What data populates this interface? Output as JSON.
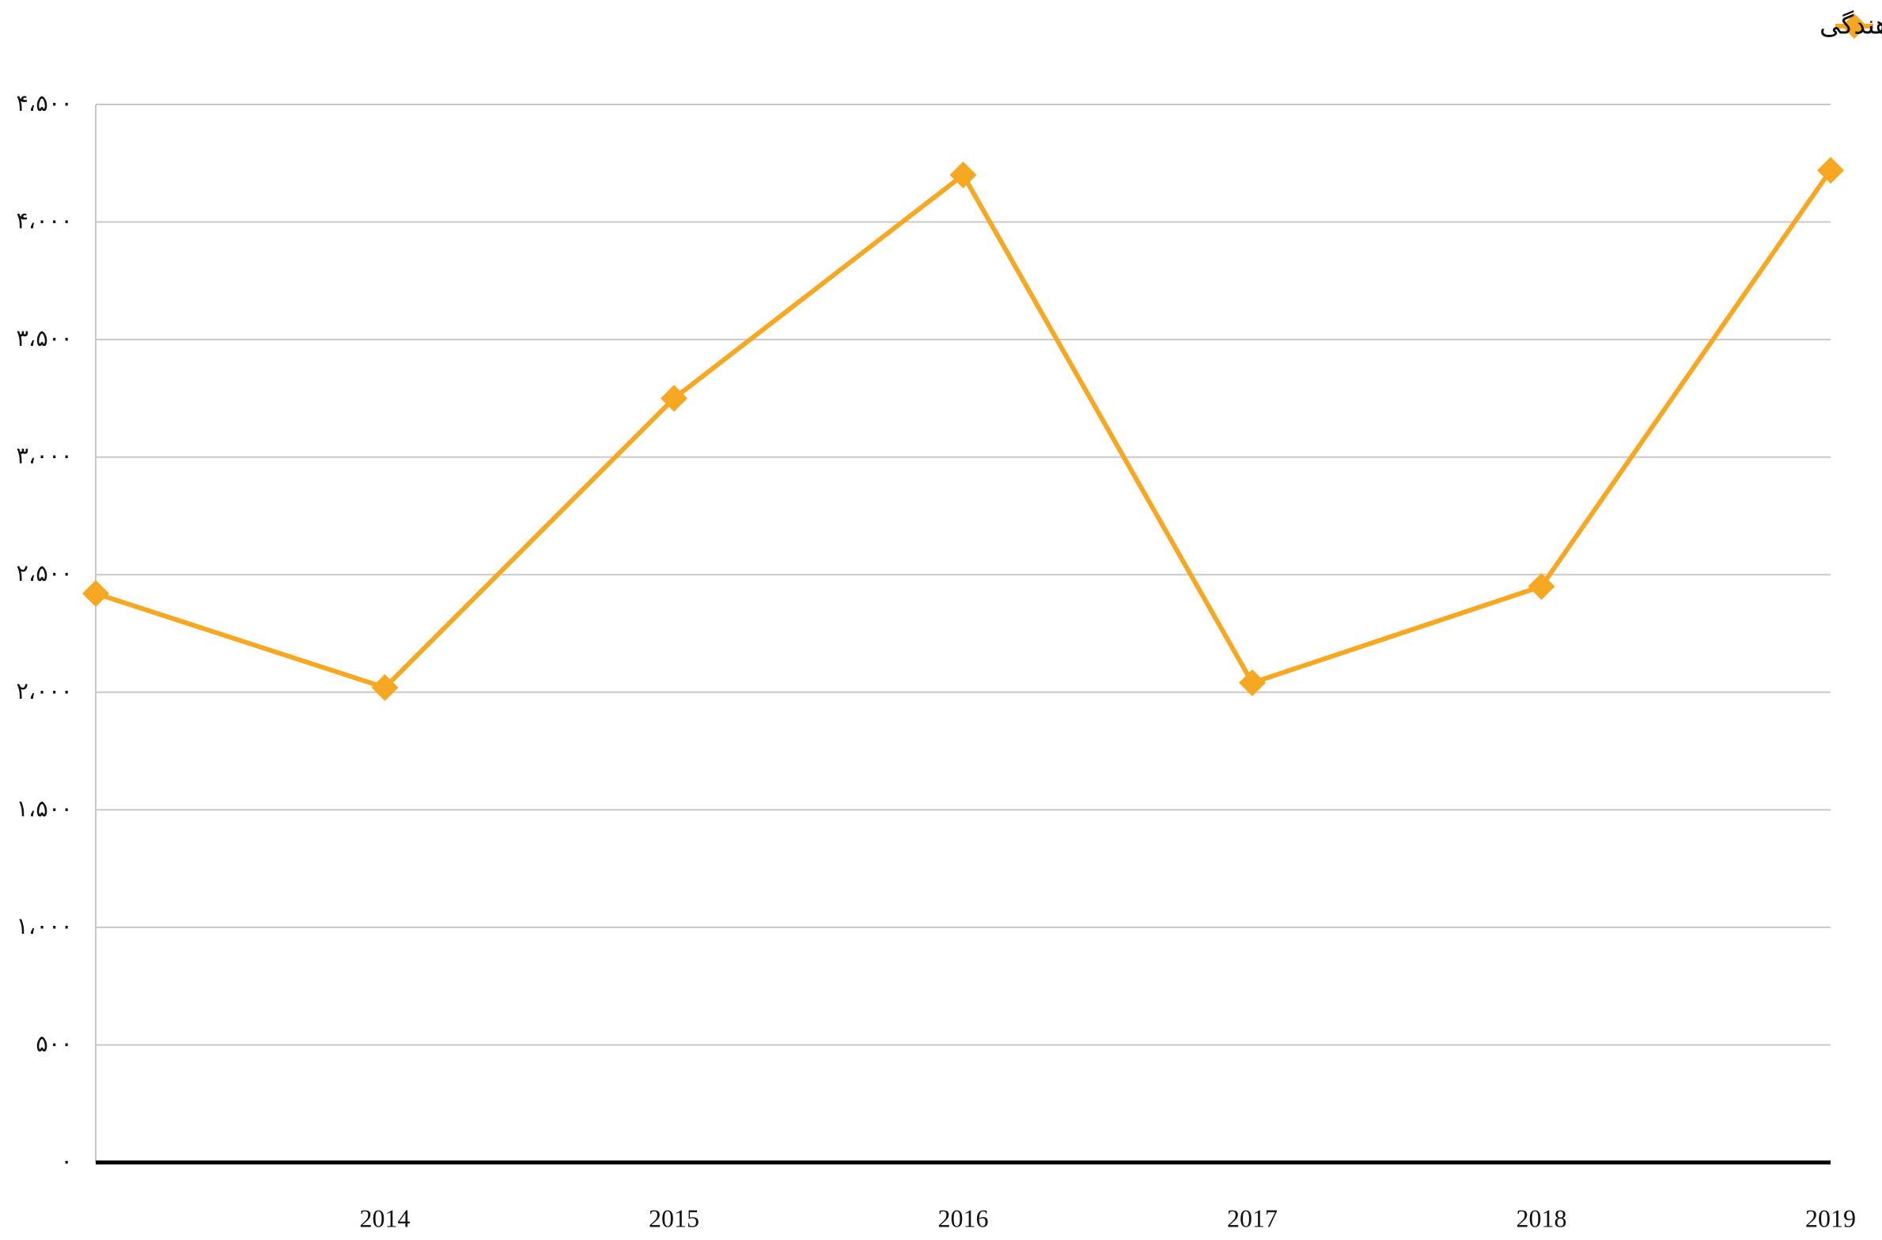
{
  "chart_data": {
    "type": "line",
    "categories": [
      null,
      "2014",
      "2015",
      "2016",
      "2017",
      "2018",
      "2019"
    ],
    "series": [
      {
        "name": "متقاضیان پناهندگی",
        "color": "#f7a823",
        "values": [
          2420,
          2020,
          3250,
          4200,
          2040,
          2450,
          4220
        ]
      }
    ],
    "ylim": [
      0,
      4500
    ],
    "yticks": [
      {
        "value": 0,
        "label": "۰"
      },
      {
        "value": 500,
        "label": "۵۰۰"
      },
      {
        "value": 1000,
        "label": "۱،۰۰۰"
      },
      {
        "value": 1500,
        "label": "۱،۵۰۰"
      },
      {
        "value": 2000,
        "label": "۲،۰۰۰"
      },
      {
        "value": 2500,
        "label": "۲،۵۰۰"
      },
      {
        "value": 3000,
        "label": "۳،۰۰۰"
      },
      {
        "value": 3500,
        "label": "۳،۵۰۰"
      },
      {
        "value": 4000,
        "label": "۴،۰۰۰"
      },
      {
        "value": 4500,
        "label": "۴،۵۰۰"
      }
    ],
    "grid": true,
    "legend": "top-right"
  }
}
